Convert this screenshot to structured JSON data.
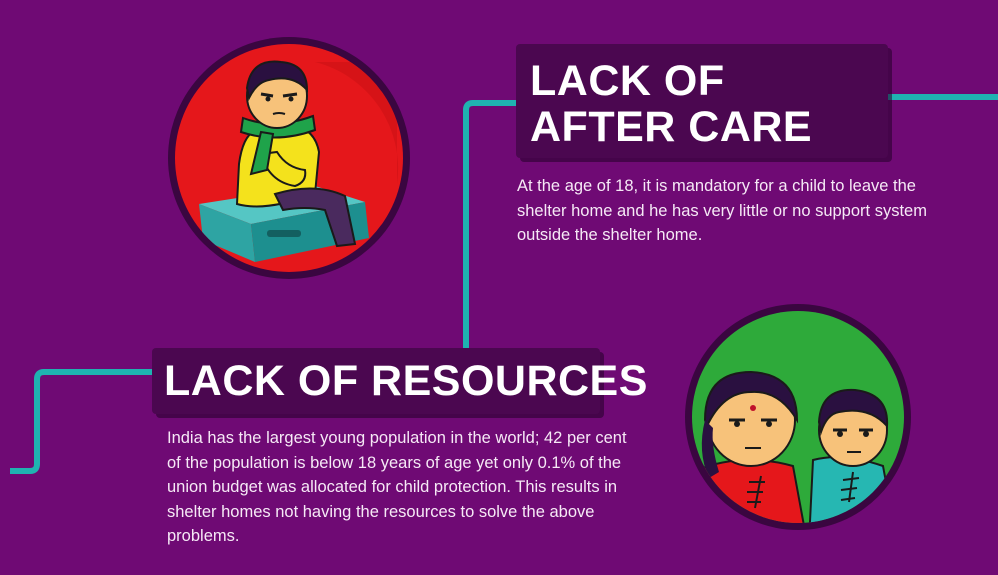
{
  "colors": {
    "background": "#6f0a74",
    "title_box": "#4b0750",
    "connector": "#1fb3b1",
    "red_circle": "#e5171b",
    "green_circle": "#2eaa3a"
  },
  "illustrations": {
    "boy": "boy-sitting-on-suitcase-illustration",
    "children": "two-children-illustration"
  },
  "after_care": {
    "title_line1": "LACK OF",
    "title_line2": "AFTER CARE",
    "description": "At the age of 18, it is mandatory for a child to leave the shelter home and he has very little or no support system outside the shelter home."
  },
  "resources": {
    "title": "LACK OF RESOURCES",
    "description": "India has the largest young population in the world; 42 per cent of the population is below 18 years of age yet only 0.1% of the union budget was allocated for child protection. This results in shelter homes not having the resources to solve the above problems."
  }
}
